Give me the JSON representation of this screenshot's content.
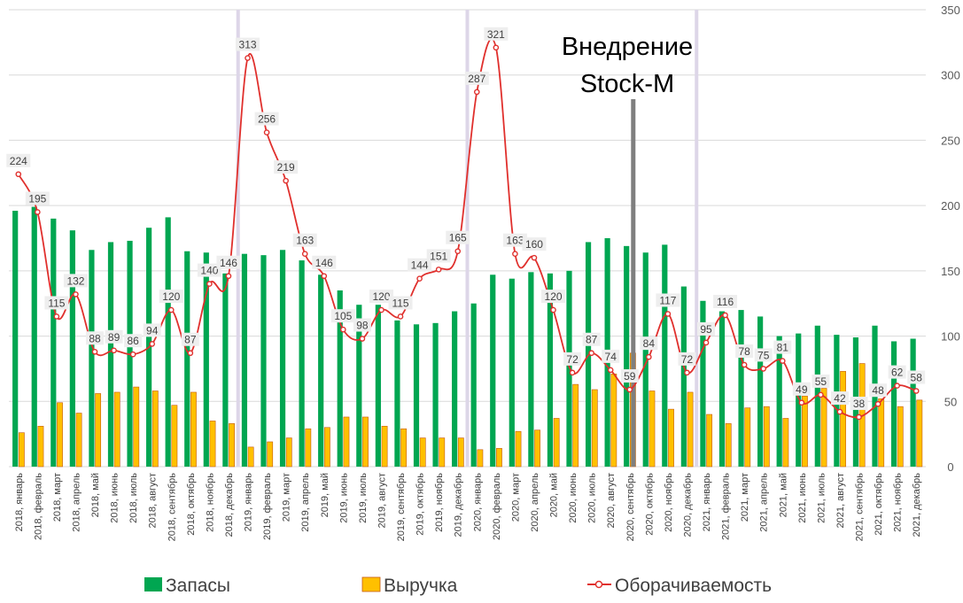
{
  "chart_data": {
    "type": "bar",
    "title": "",
    "xlabel": "",
    "ylabel": "",
    "ylim": [
      0,
      350
    ],
    "y_ticks": [
      0,
      50,
      100,
      150,
      200,
      250,
      300,
      350
    ],
    "grid": true,
    "legend_position": "bottom",
    "categories": [
      "2018, январь",
      "2018, февраль",
      "2018, март",
      "2018, апрель",
      "2018, май",
      "2018, июнь",
      "2018, июль",
      "2018, август",
      "2018, сентябрь",
      "2018, октябрь",
      "2018, ноябрь",
      "2018, декабрь",
      "2019, январь",
      "2019, февраль",
      "2019, март",
      "2019, апрель",
      "2019, май",
      "2019, июнь",
      "2019, июль",
      "2019, август",
      "2019, сентябрь",
      "2019, октябрь",
      "2019, ноябрь",
      "2019, декабрь",
      "2020, январь",
      "2020, февраль",
      "2020, март",
      "2020, апрель",
      "2020, май",
      "2020, июнь",
      "2020, июль",
      "2020, август",
      "2020, сентябрь",
      "2020, октябрь",
      "2020, ноябрь",
      "2020, декабрь",
      "2021, январь",
      "2021, февраль",
      "2021, март",
      "2021, апрель",
      "2021, май",
      "2021, июнь",
      "2021, июль",
      "2021, август",
      "2021, сентябрь",
      "2021, октябрь",
      "2021, ноябрь",
      "2021, декабрь"
    ],
    "series": [
      {
        "name": "Запасы",
        "type": "bar",
        "color": "#00a651",
        "values": [
          196,
          199,
          190,
          181,
          166,
          172,
          173,
          183,
          191,
          165,
          164,
          148,
          163,
          162,
          166,
          158,
          147,
          135,
          124,
          124,
          112,
          109,
          110,
          119,
          125,
          147,
          144,
          149,
          148,
          150,
          172,
          175,
          169,
          164,
          170,
          138,
          127,
          119,
          120,
          115,
          100,
          102,
          108,
          101,
          99,
          108,
          96,
          98
        ]
      },
      {
        "name": "Выручка",
        "type": "bar",
        "color": "#ffc000",
        "values": [
          26,
          31,
          49,
          41,
          56,
          57,
          61,
          58,
          47,
          57,
          35,
          33,
          15,
          19,
          22,
          29,
          30,
          38,
          38,
          31,
          29,
          22,
          22,
          22,
          13,
          14,
          27,
          28,
          37,
          63,
          59,
          71,
          87,
          58,
          44,
          57,
          40,
          33,
          45,
          46,
          37,
          54,
          60,
          73,
          79,
          52,
          46,
          51
        ]
      },
      {
        "name": "Оборачиваемость",
        "type": "line",
        "color": "#e0302d",
        "values": [
          224,
          195,
          115,
          132,
          88,
          89,
          86,
          94,
          120,
          87,
          140,
          146,
          313,
          256,
          219,
          163,
          146,
          105,
          98,
          120,
          115,
          144,
          151,
          165,
          287,
          321,
          163,
          160,
          120,
          72,
          87,
          74,
          59,
          84,
          117,
          72,
          95,
          116,
          78,
          75,
          81,
          49,
          55,
          42,
          38,
          48,
          62,
          58
        ]
      }
    ],
    "data_labels": [
      "224",
      "195",
      "115",
      "132",
      "88",
      "89",
      "86",
      "94",
      "120",
      "87",
      "140",
      "146",
      "313",
      "256",
      "219",
      "163",
      "146",
      "105",
      "98",
      "120",
      "115",
      "144",
      "151",
      "165",
      "287",
      "321",
      "163",
      "160",
      "120",
      "72",
      "87",
      "74",
      "59",
      "84",
      "117",
      "72",
      "95",
      "116",
      "78",
      "75",
      "81",
      "49",
      "55",
      "42",
      "38",
      "48",
      "62",
      "58"
    ],
    "year_separators_after_index": [
      11,
      23,
      35
    ],
    "annotation": {
      "line1": "Внедрение",
      "line2": "Stock-M",
      "at_index": 32
    },
    "colors": {
      "grid": "#d9d9d9",
      "separator": "#ddd6e8",
      "marker": "#2e2e2e",
      "annotation_line": "#7f7f7f"
    }
  },
  "legend": {
    "items": [
      {
        "label": "Запасы",
        "color": "#00a651",
        "icon": "square-swatch"
      },
      {
        "label": "Выручка",
        "color": "#ffc000",
        "icon": "square-swatch"
      },
      {
        "label": "Оборачиваемость",
        "color": "#e0302d",
        "icon": "line-marker-swatch"
      }
    ]
  }
}
